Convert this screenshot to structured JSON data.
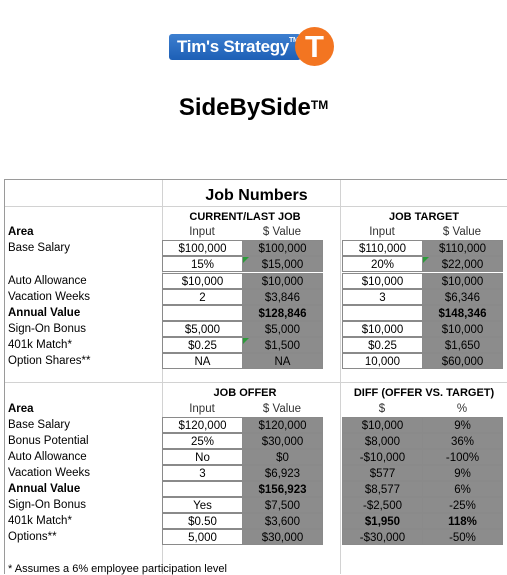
{
  "brand": {
    "name": "Tim's Strategy",
    "tm": "TM",
    "letter": "T"
  },
  "title": {
    "text": "SideBySide",
    "tm": "TM"
  },
  "section_title": "Job Numbers",
  "current": {
    "heading": "CURRENT/LAST  JOB",
    "col_input": "Input",
    "col_value": "$ Value",
    "rows": [
      {
        "label": "Area",
        "bold": true,
        "input": "",
        "value": ""
      },
      {
        "label": "Base Salary",
        "input": "$100,000",
        "value": "$100,000"
      },
      {
        "label": "",
        "input": "15%",
        "value": "$15,000"
      },
      {
        "label": "Auto Allowance",
        "input": "$10,000",
        "value": "$10,000"
      },
      {
        "label": "Vacation Weeks",
        "input": "2",
        "value": "$3,846"
      },
      {
        "label": "Annual Value",
        "bold": true,
        "input": "",
        "value": "$128,846"
      },
      {
        "label": "Sign-On Bonus",
        "input": "$5,000",
        "value": "$5,000"
      },
      {
        "label": "401k Match*",
        "input": "$0.25",
        "value": "$1,500"
      },
      {
        "label": "Option Shares**",
        "input": "NA",
        "value": "NA"
      }
    ]
  },
  "target": {
    "heading": "JOB TARGET",
    "col_input": "Input",
    "col_value": "$ Value",
    "rows": [
      {
        "input": "$110,000",
        "value": "$110,000"
      },
      {
        "input": "20%",
        "value": "$22,000"
      },
      {
        "input": "$10,000",
        "value": "$10,000"
      },
      {
        "input": "3",
        "value": "$6,346"
      },
      {
        "input": "",
        "value": "$148,346"
      },
      {
        "input": "$10,000",
        "value": "$10,000"
      },
      {
        "input": "$0.25",
        "value": "$1,650"
      },
      {
        "input": "10,000",
        "value": "$60,000"
      }
    ]
  },
  "offer": {
    "heading": "JOB OFFER",
    "col_input": "Input",
    "col_value": "$ Value",
    "rows": [
      {
        "label": "Area",
        "bold": true
      },
      {
        "label": "Base Salary",
        "input": "$120,000",
        "value": "$120,000"
      },
      {
        "label": "Bonus Potential",
        "input": "25%",
        "value": "$30,000"
      },
      {
        "label": "Auto Allowance",
        "input": "No",
        "value": "$0"
      },
      {
        "label": "Vacation Weeks",
        "input": "3",
        "value": "$6,923"
      },
      {
        "label": "Annual Value",
        "bold": true,
        "input": "",
        "value": "$156,923"
      },
      {
        "label": "Sign-On Bonus",
        "input": "Yes",
        "value": "$7,500"
      },
      {
        "label": "401k Match*",
        "input": "$0.50",
        "value": "$3,600"
      },
      {
        "label": "Options**",
        "input": "5,000",
        "value": "$30,000"
      }
    ]
  },
  "diff": {
    "heading": "DIFF (OFFER VS. TARGET)",
    "col_dollar": "$",
    "col_pct": "%",
    "rows": [
      {
        "dollar": "$10,000",
        "pct": "9%"
      },
      {
        "dollar": "$8,000",
        "pct": "36%"
      },
      {
        "dollar": "-$10,000",
        "pct": "-100%"
      },
      {
        "dollar": "$577",
        "pct": "9%"
      },
      {
        "dollar": "$8,577",
        "pct": "6%"
      },
      {
        "dollar": "-$2,500",
        "pct": "-25%"
      },
      {
        "dollar": "$1,950",
        "pct": "118%"
      },
      {
        "dollar": "-$30,000",
        "pct": "-50%"
      }
    ]
  },
  "footnote": "* Assumes a 6% employee participation level"
}
